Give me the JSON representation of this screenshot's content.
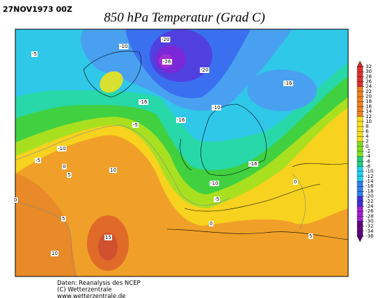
{
  "header": {
    "date": "27NOV1973 00Z",
    "title": "850 hPa Temperatur (Grad C)"
  },
  "colorbar": {
    "labels": [
      32,
      30,
      28,
      26,
      24,
      22,
      20,
      18,
      16,
      14,
      12,
      10,
      8,
      6,
      4,
      2,
      0,
      -2,
      -4,
      -6,
      -8,
      -10,
      -12,
      -14,
      -16,
      -18,
      -20,
      -22,
      -24,
      -26,
      -28,
      -30,
      -32,
      -34,
      -36
    ]
  },
  "map": {
    "contour_labels": [
      "-20",
      "-10",
      "-5",
      "-26",
      "-20",
      "-16",
      "-16",
      "-10",
      "-16",
      "-5",
      "-10",
      "-5",
      "-16",
      "0",
      "5",
      "10",
      "-10",
      "0",
      "-5",
      "0",
      "5",
      "10",
      "15",
      "5",
      "0"
    ]
  },
  "footer": {
    "lines": [
      "Daten: Reanalysis des NCEP",
      "(C) Wetterzentrale",
      "www.wetterzentrale.de"
    ]
  }
}
